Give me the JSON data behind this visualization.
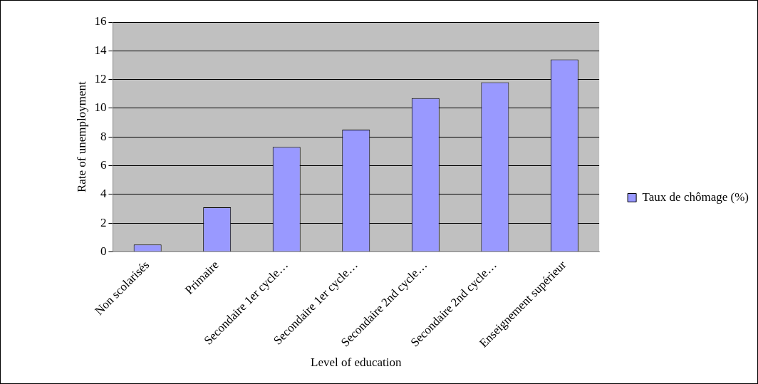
{
  "chart_data": {
    "type": "bar",
    "xlabel": "Level of education",
    "ylabel": "Rate of unemployment",
    "categories": [
      "Non scolarisés",
      "Primaire",
      "Secondaire 1er cycle…",
      "Secondaire 1er cycle…",
      "Secondaire 2nd cycle…",
      "Secondaire 2nd cycle…",
      "Enseignement supérieur"
    ],
    "series": [
      {
        "name": "Taux de chômage (%)",
        "color": "#9999ff",
        "values": [
          0.5,
          3.1,
          7.3,
          8.5,
          10.7,
          11.8,
          13.4
        ]
      }
    ],
    "ylim": [
      0,
      16
    ],
    "yticks": [
      0,
      2,
      4,
      6,
      8,
      10,
      12,
      14,
      16
    ],
    "grid": "y",
    "legend": "right"
  }
}
